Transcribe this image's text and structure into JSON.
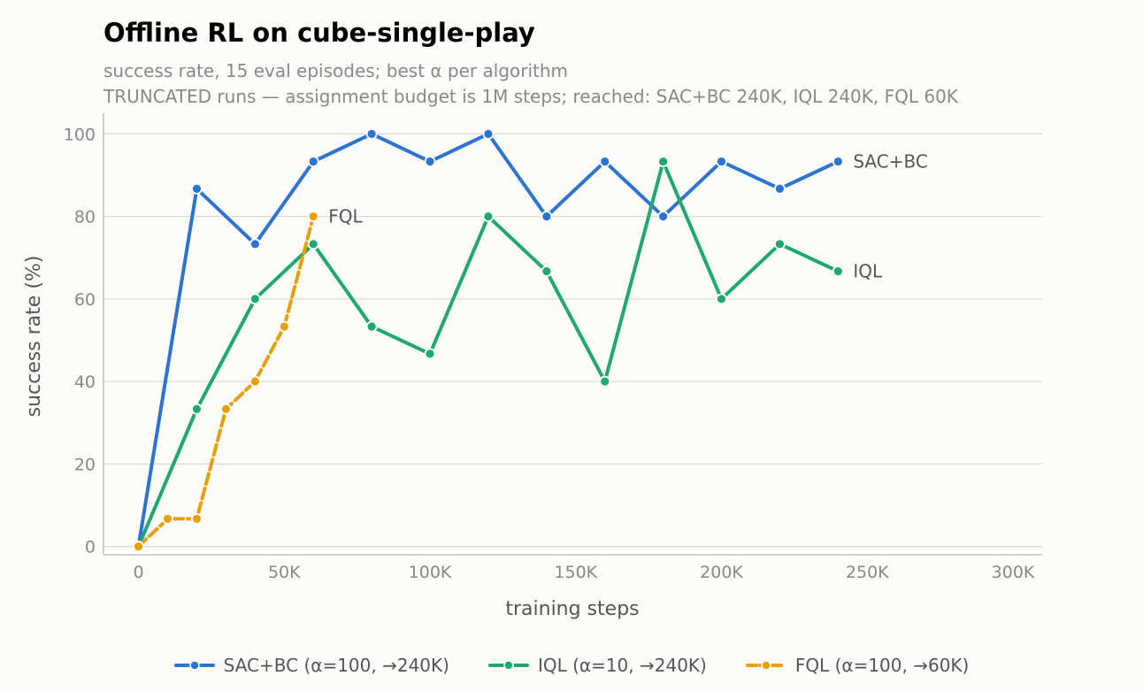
{
  "chart_data": {
    "type": "line",
    "title": "Offline RL on cube-single-play",
    "subtitle": "success rate, 15 eval episodes; best α per algorithm",
    "note": "TRUNCATED runs — assignment budget is 1M steps; reached: SAC+BC 240K, IQL 240K, FQL 60K",
    "xlabel": "training steps",
    "ylabel": "success rate (%)",
    "xlim": [
      -12000,
      310000
    ],
    "ylim": [
      -2,
      105
    ],
    "xticks": [
      0,
      50000,
      100000,
      150000,
      200000,
      250000,
      300000
    ],
    "xtick_labels": [
      "0",
      "50K",
      "100K",
      "150K",
      "200K",
      "250K",
      "300K"
    ],
    "yticks": [
      0,
      20,
      40,
      60,
      80,
      100
    ],
    "ytick_labels": [
      "0",
      "20",
      "40",
      "60",
      "80",
      "100"
    ],
    "grid": "horizontal",
    "legend_position": "bottom-center",
    "series": [
      {
        "name": "SAC+BC (α=100, →240K)",
        "end_label": "SAC+BC",
        "color": "#2c73d2",
        "dashed": false,
        "x": [
          0,
          20000,
          40000,
          60000,
          80000,
          100000,
          120000,
          140000,
          160000,
          180000,
          200000,
          220000,
          240000
        ],
        "y": [
          0,
          86.7,
          73.3,
          93.3,
          100,
          93.3,
          100,
          80,
          93.3,
          80,
          93.3,
          86.7,
          93.3
        ]
      },
      {
        "name": "IQL (α=10, →240K)",
        "end_label": "IQL",
        "color": "#1fa776",
        "dashed": false,
        "x": [
          0,
          20000,
          40000,
          60000,
          80000,
          100000,
          120000,
          140000,
          160000,
          180000,
          200000,
          220000,
          240000
        ],
        "y": [
          0,
          33.3,
          60,
          73.3,
          53.3,
          46.7,
          80,
          66.7,
          40,
          93.3,
          60,
          73.3,
          66.7
        ]
      },
      {
        "name": "FQL (α=100, →60K)",
        "end_label": "FQL",
        "color": "#e89f0a",
        "dashed": true,
        "x": [
          0,
          10000,
          20000,
          30000,
          40000,
          50000,
          60000
        ],
        "y": [
          0,
          6.7,
          6.7,
          33.3,
          40,
          53.3,
          80
        ]
      }
    ]
  }
}
